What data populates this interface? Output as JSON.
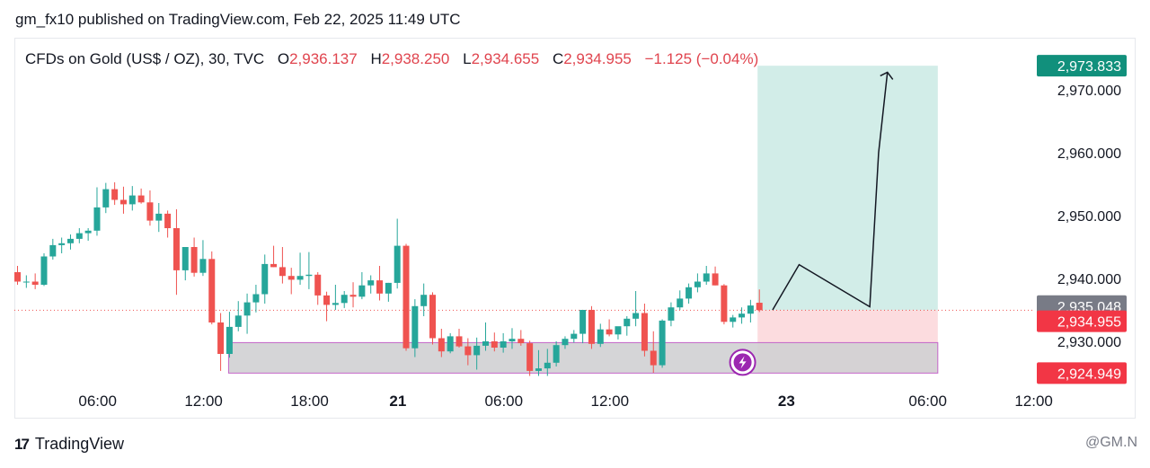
{
  "header": {
    "published_text": "gm_fx10 published on TradingView.com, Feb 22, 2025 11:49 UTC"
  },
  "legend": {
    "symbol": "CFDs on Gold (US$ / OZ), 30, TVC",
    "open_label": "O",
    "open": "2,936.137",
    "high_label": "H",
    "high": "2,938.250",
    "low_label": "L",
    "low": "2,934.655",
    "close_label": "C",
    "close": "2,934.955",
    "change": "−1.125 (−0.04%)"
  },
  "footer": {
    "brand": "TradingView",
    "handle": "@GM.N"
  },
  "colors": {
    "up": "#26a69a",
    "down": "#ef5350",
    "target_zone": "#d2ede8",
    "stop_zone": "#fcdcdf",
    "demand_zone": "#d0d0d3",
    "demand_border": "#c565c9",
    "target_badge": "#11907c",
    "close_badge": "#f23645",
    "mid_badge": "#787b86"
  },
  "chart_data": {
    "type": "candlestick",
    "timeframe": "30",
    "ylim": [
      2920.5,
      2976.5
    ],
    "y_ticks": [
      {
        "value": 2970,
        "label": "2,970.000"
      },
      {
        "value": 2960,
        "label": "2,960.000"
      },
      {
        "value": 2950,
        "label": "2,950.000"
      },
      {
        "value": 2940,
        "label": "2,940.000"
      },
      {
        "value": 2930,
        "label": "2,930.000"
      }
    ],
    "x_ticks": [
      {
        "index": 5,
        "label": "06:00",
        "bold": false
      },
      {
        "index": 17,
        "label": "12:00",
        "bold": false
      },
      {
        "index": 29,
        "label": "18:00",
        "bold": false
      },
      {
        "index": 39,
        "label": "21",
        "bold": true
      },
      {
        "index": 51,
        "label": "06:00",
        "bold": false
      },
      {
        "index": 63,
        "label": "12:00",
        "bold": false
      },
      {
        "index": 83,
        "label": "23",
        "bold": true
      },
      {
        "index": 99,
        "label": "06:00",
        "bold": false
      },
      {
        "index": 111,
        "label": "12:00",
        "bold": false
      }
    ],
    "price_badges": [
      {
        "label": "2,973.833",
        "value": 2973.833,
        "color": "target_badge"
      },
      {
        "label": "2,935.048",
        "value": 2935.6,
        "color": "mid_badge"
      },
      {
        "label": "2,934.955",
        "value": 2933.2,
        "color": "close_badge"
      },
      {
        "label": "2,924.949",
        "value": 2924.949,
        "color": "close_badge"
      }
    ],
    "last_price": 2934.955,
    "candles": [
      [
        2941.0,
        2942.0,
        2939.0,
        2939.5
      ],
      [
        2939.5,
        2940.5,
        2938.5,
        2939.5
      ],
      [
        2939.5,
        2940.8,
        2938.3,
        2939.0
      ],
      [
        2939.0,
        2944.0,
        2938.8,
        2943.5
      ],
      [
        2943.5,
        2946.3,
        2943.0,
        2945.3
      ],
      [
        2945.3,
        2946.5,
        2944.0,
        2945.6
      ],
      [
        2945.6,
        2947.0,
        2944.6,
        2946.3
      ],
      [
        2946.3,
        2948.0,
        2945.6,
        2947.2
      ],
      [
        2947.2,
        2948.0,
        2946.0,
        2947.6
      ],
      [
        2947.6,
        2954.5,
        2946.8,
        2951.3
      ],
      [
        2951.3,
        2955.2,
        2950.4,
        2954.2
      ],
      [
        2954.2,
        2955.3,
        2951.7,
        2952.5
      ],
      [
        2952.5,
        2954.6,
        2950.3,
        2951.8
      ],
      [
        2951.8,
        2954.7,
        2950.8,
        2953.2
      ],
      [
        2953.2,
        2954.3,
        2951.9,
        2952.1
      ],
      [
        2952.1,
        2954.0,
        2948.4,
        2949.2
      ],
      [
        2949.2,
        2952.0,
        2947.4,
        2950.3
      ],
      [
        2950.3,
        2950.8,
        2946.5,
        2948.0
      ],
      [
        2948.0,
        2951.0,
        2937.4,
        2941.3
      ],
      [
        2941.3,
        2945.0,
        2939.7,
        2945.0
      ],
      [
        2945.0,
        2946.5,
        2940.3,
        2940.9
      ],
      [
        2940.9,
        2946.1,
        2940.4,
        2943.1
      ],
      [
        2943.1,
        2944.3,
        2932.7,
        2933.0
      ],
      [
        2933.0,
        2934.5,
        2925.3,
        2928.0
      ],
      [
        2928.0,
        2934.7,
        2927.4,
        2932.3
      ],
      [
        2932.3,
        2936.4,
        2931.6,
        2934.1
      ],
      [
        2934.1,
        2937.6,
        2931.2,
        2936.2
      ],
      [
        2936.2,
        2939.0,
        2934.6,
        2937.5
      ],
      [
        2937.5,
        2943.8,
        2936.0,
        2942.3
      ],
      [
        2942.3,
        2945.2,
        2941.8,
        2941.8
      ],
      [
        2941.8,
        2945.0,
        2939.2,
        2940.4
      ],
      [
        2940.4,
        2941.7,
        2937.5,
        2939.8
      ],
      [
        2939.8,
        2944.1,
        2939.0,
        2940.4
      ],
      [
        2940.4,
        2944.2,
        2938.3,
        2940.6
      ],
      [
        2940.6,
        2941.0,
        2935.8,
        2937.3
      ],
      [
        2937.3,
        2937.9,
        2933.2,
        2935.8
      ],
      [
        2935.8,
        2939.0,
        2935.0,
        2936.1
      ],
      [
        2936.1,
        2938.0,
        2935.3,
        2937.4
      ],
      [
        2937.4,
        2939.4,
        2935.4,
        2937.1
      ],
      [
        2937.1,
        2941.0,
        2936.7,
        2938.9
      ],
      [
        2938.9,
        2940.5,
        2937.6,
        2939.7
      ],
      [
        2939.7,
        2942.0,
        2936.5,
        2937.6
      ],
      [
        2937.6,
        2939.3,
        2936.3,
        2939.3
      ],
      [
        2939.3,
        2949.5,
        2938.4,
        2945.2
      ],
      [
        2945.2,
        2945.5,
        2928.5,
        2928.9
      ],
      [
        2928.9,
        2936.7,
        2927.5,
        2935.6
      ],
      [
        2935.6,
        2939.2,
        2934.0,
        2937.4
      ],
      [
        2937.4,
        2937.8,
        2929.5,
        2930.5
      ],
      [
        2930.5,
        2932.0,
        2927.5,
        2928.4
      ],
      [
        2928.4,
        2931.3,
        2928.1,
        2930.8
      ],
      [
        2930.8,
        2932.0,
        2929.0,
        2929.2
      ],
      [
        2929.2,
        2930.5,
        2926.2,
        2927.8
      ],
      [
        2927.8,
        2930.6,
        2925.5,
        2929.3
      ],
      [
        2929.3,
        2933.0,
        2928.5,
        2930.0
      ],
      [
        2930.0,
        2931.4,
        2928.4,
        2929.0
      ],
      [
        2929.0,
        2931.3,
        2928.2,
        2930.0
      ],
      [
        2930.0,
        2932.1,
        2928.8,
        2930.4
      ],
      [
        2930.4,
        2931.8,
        2929.3,
        2929.7
      ],
      [
        2929.7,
        2930.1,
        2924.5,
        2925.3
      ],
      [
        2925.3,
        2928.6,
        2924.5,
        2925.7
      ],
      [
        2925.7,
        2928.8,
        2924.5,
        2926.6
      ],
      [
        2926.6,
        2930.0,
        2926.0,
        2929.4
      ],
      [
        2929.4,
        2930.8,
        2928.8,
        2930.4
      ],
      [
        2930.4,
        2931.8,
        2929.8,
        2931.2
      ],
      [
        2931.2,
        2935.0,
        2929.7,
        2935.0
      ],
      [
        2935.0,
        2935.6,
        2928.8,
        2929.6
      ],
      [
        2929.6,
        2932.8,
        2929.1,
        2931.9
      ],
      [
        2931.9,
        2933.5,
        2930.8,
        2931.1
      ],
      [
        2931.1,
        2932.3,
        2930.3,
        2932.4
      ],
      [
        2932.4,
        2934.0,
        2930.9,
        2933.6
      ],
      [
        2933.6,
        2938.0,
        2932.4,
        2934.5
      ],
      [
        2934.5,
        2936.0,
        2927.6,
        2928.5
      ],
      [
        2928.5,
        2931.6,
        2925.0,
        2926.2
      ],
      [
        2926.2,
        2933.5,
        2925.8,
        2933.3
      ],
      [
        2933.3,
        2936.2,
        2932.4,
        2935.4
      ],
      [
        2935.4,
        2938.1,
        2935.0,
        2936.8
      ],
      [
        2936.8,
        2939.2,
        2936.0,
        2938.6
      ],
      [
        2938.6,
        2940.8,
        2937.8,
        2939.5
      ],
      [
        2939.5,
        2942.0,
        2939.0,
        2940.8
      ],
      [
        2940.8,
        2941.9,
        2938.9,
        2938.9
      ],
      [
        2938.9,
        2939.1,
        2932.7,
        2933.1
      ],
      [
        2933.1,
        2934.2,
        2932.2,
        2933.8
      ],
      [
        2933.8,
        2935.4,
        2932.8,
        2934.4
      ],
      [
        2934.4,
        2936.6,
        2933.0,
        2935.7
      ],
      [
        2936.137,
        2938.25,
        2934.655,
        2934.955
      ]
    ],
    "position": {
      "entry": 2934.955,
      "target": 2973.833,
      "stop": 2924.949,
      "start_index": 84,
      "end_index": 104
    },
    "demand_zone": {
      "top": 2929.8,
      "bottom": 2924.949,
      "start_index": 24,
      "end_index": 104
    },
    "projection_path": [
      {
        "index": 85.5,
        "value": 2935.0
      },
      {
        "index": 88.5,
        "value": 2942.2
      },
      {
        "index": 96.5,
        "value": 2935.5
      },
      {
        "index": 97.5,
        "value": 2960.0
      },
      {
        "index": 98.5,
        "value": 2972.8
      }
    ]
  }
}
